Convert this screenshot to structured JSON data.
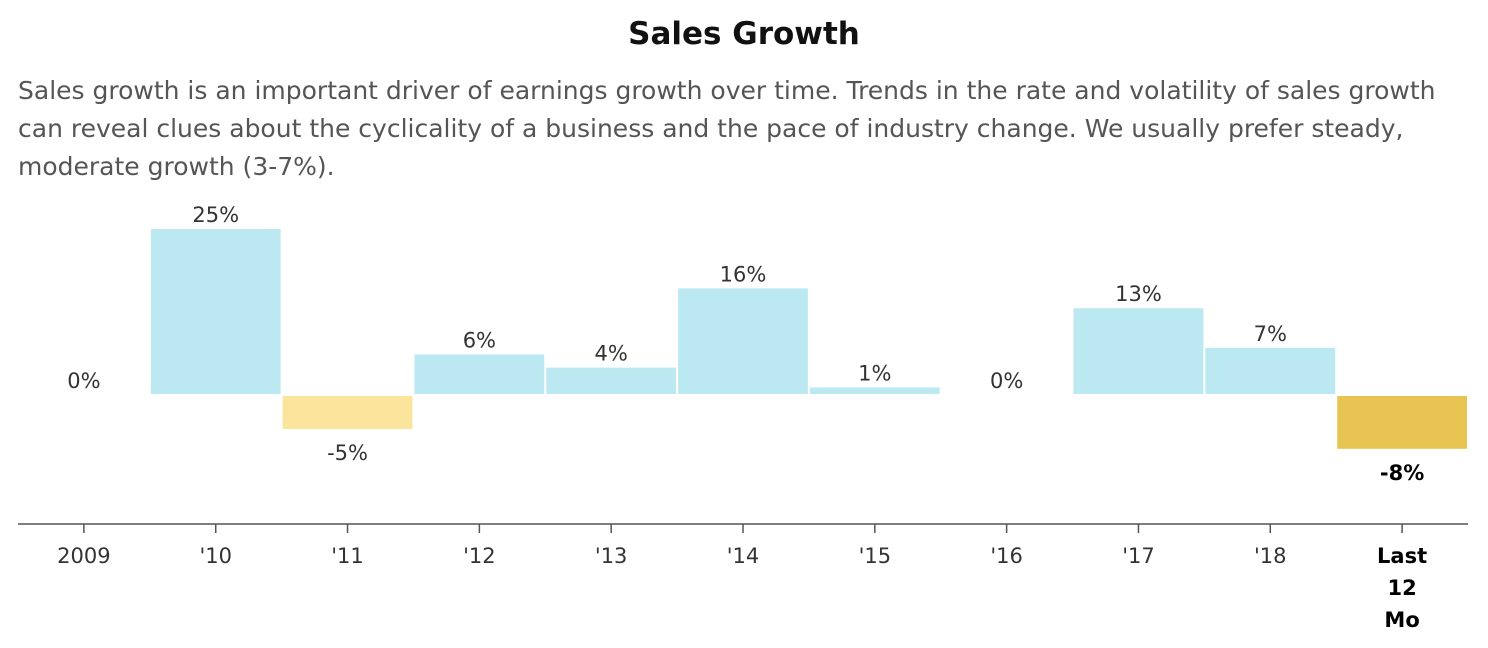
{
  "chart_data": {
    "type": "bar",
    "title": "Sales Growth",
    "subtitle": "Sales growth is an important driver of earnings growth over time. Trends in the rate and volatility of sales growth can reveal clues about the cyclicality of a business and the pace of industry change. We usually prefer steady, moderate growth (3-7%).",
    "xlabel": "",
    "ylabel": "",
    "categories": [
      "2009",
      "'10",
      "'11",
      "'12",
      "'13",
      "'14",
      "'15",
      "'16",
      "'17",
      "'18",
      "Last 12 Mo"
    ],
    "values": [
      0,
      25,
      -5,
      6,
      4,
      16,
      1,
      0,
      13,
      7,
      -8
    ],
    "value_labels": [
      "0%",
      "25%",
      "-5%",
      "6%",
      "4%",
      "16%",
      "1%",
      "0%",
      "13%",
      "7%",
      "-8%"
    ],
    "ylim": [
      -20,
      25
    ],
    "grid": false,
    "legend": "none",
    "highlight_index": 10,
    "colors": {
      "positive": "#bce9f1",
      "negative": "#fbe59c",
      "highlight_negative": "#e8c552",
      "axis": "#555555",
      "text": "#333333",
      "highlight_text": "#000000"
    }
  }
}
